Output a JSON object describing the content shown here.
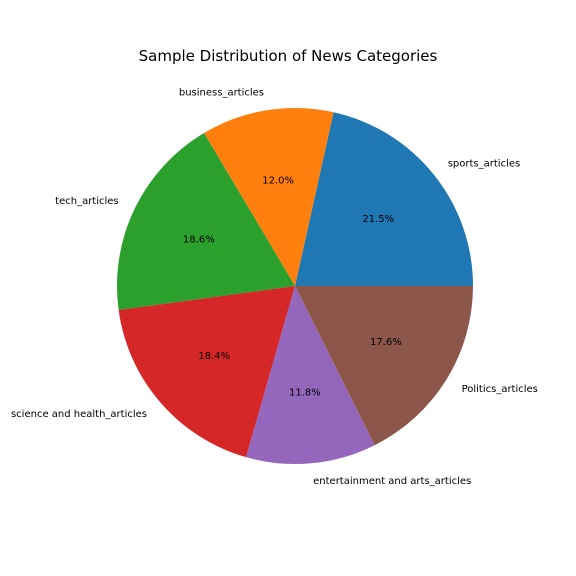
{
  "chart_data": {
    "type": "pie",
    "title": "Sample Distribution of News Categories",
    "labels": [
      "sports_articles",
      "business_articles",
      "tech_articles",
      "science and health_articles",
      "entertainment and arts_articles",
      "Politics_articles"
    ],
    "values": [
      21.5,
      12.0,
      18.6,
      18.4,
      11.8,
      17.6
    ],
    "percent_labels": [
      "21.5%",
      "12.0%",
      "18.6%",
      "18.4%",
      "11.8%",
      "17.6%"
    ],
    "colors": [
      "#1f77b4",
      "#ff7f0e",
      "#2ca02c",
      "#d62728",
      "#9467bd",
      "#8c564b"
    ],
    "start_angle_deg": 0,
    "direction": "counterclockwise",
    "legend": "none"
  }
}
